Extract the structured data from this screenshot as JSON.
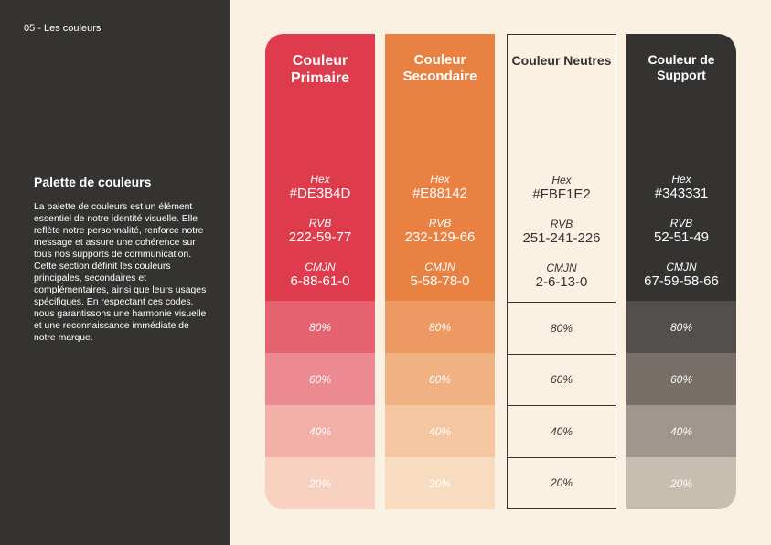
{
  "header": {
    "section_label": "05 - Les couleurs"
  },
  "intro": {
    "title": "Palette de couleurs",
    "description": "La palette de couleurs est un  élément essentiel de notre identité visuelle. Elle reflète notre personnalité, renforce notre message et assure une cohérence sur tous nos supports de communication. Cette section définit les couleurs principales, secondaires et complémentaires, ainsi que leurs usages spécifiques. En respectant ces codes, nous garantissons une harmonie visuelle et une reconnaissance immédiate de notre marque."
  },
  "labels": {
    "hex": "Hex",
    "rgb": "RVB",
    "cmyk": "CMJN"
  },
  "colors": [
    {
      "title": "Couleur Primaire",
      "hex": "#DE3B4D",
      "rgb": "222-59-77",
      "cmyk": "6-88-61-0",
      "tints": [
        "80%",
        "60%",
        "40%",
        "20%"
      ]
    },
    {
      "title": "Couleur Secondaire",
      "hex": "#E88142",
      "rgb": "232-129-66",
      "cmyk": "5-58-78-0",
      "tints": [
        "80%",
        "60%",
        "40%",
        "20%"
      ]
    },
    {
      "title": "Couleur Neutres",
      "hex": "#FBF1E2",
      "rgb": "251-241-226",
      "cmyk": "2-6-13-0",
      "tints": [
        "80%",
        "60%",
        "40%",
        "20%"
      ]
    },
    {
      "title": "Couleur de Support",
      "hex": "#343331",
      "rgb": "52-51-49",
      "cmyk": "67-59-58-66",
      "tints": [
        "80%",
        "60%",
        "40%",
        "20%"
      ]
    }
  ]
}
